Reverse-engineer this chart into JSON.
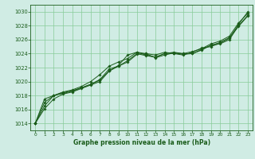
{
  "xlabel": "Graphe pression niveau de la mer (hPa)",
  "ylim": [
    1013.0,
    1031.0
  ],
  "xlim": [
    -0.5,
    23.5
  ],
  "yticks": [
    1014,
    1016,
    1018,
    1020,
    1022,
    1024,
    1026,
    1028,
    1030
  ],
  "xticks": [
    0,
    1,
    2,
    3,
    4,
    5,
    6,
    7,
    8,
    9,
    10,
    11,
    12,
    13,
    14,
    15,
    16,
    17,
    18,
    19,
    20,
    21,
    22,
    23
  ],
  "bg_color": "#d0ece4",
  "grid_color": "#88cc99",
  "line_color": "#1a5c1a",
  "series": [
    [
      1014.0,
      1016.1,
      1017.5,
      1018.2,
      1018.5,
      1019.0,
      1019.5,
      1020.0,
      1021.5,
      1022.3,
      1023.8,
      1024.2,
      1024.0,
      1023.8,
      1024.2,
      1024.0,
      1023.8,
      1024.2,
      1024.8,
      1025.0,
      1025.5,
      1026.2,
      1028.2,
      1030.0
    ],
    [
      1014.0,
      1017.5,
      1018.0,
      1018.5,
      1018.8,
      1019.3,
      1020.0,
      1021.0,
      1022.2,
      1022.8,
      1023.3,
      1024.2,
      1023.8,
      1023.5,
      1024.0,
      1024.1,
      1024.0,
      1024.3,
      1024.7,
      1025.4,
      1025.8,
      1026.5,
      1028.4,
      1029.8
    ],
    [
      1014.0,
      1017.0,
      1018.0,
      1018.3,
      1018.6,
      1019.1,
      1019.6,
      1020.2,
      1021.5,
      1022.2,
      1022.8,
      1023.9,
      1024.0,
      1023.4,
      1023.8,
      1024.1,
      1023.9,
      1024.0,
      1024.6,
      1025.2,
      1025.4,
      1026.0,
      1028.0,
      1029.5
    ],
    [
      1014.0,
      1016.5,
      1018.0,
      1018.4,
      1018.7,
      1019.1,
      1019.6,
      1020.3,
      1021.8,
      1022.2,
      1023.0,
      1024.0,
      1023.7,
      1023.5,
      1024.0,
      1024.2,
      1024.0,
      1024.0,
      1024.5,
      1025.2,
      1025.6,
      1026.3,
      1027.9,
      1029.4
    ]
  ]
}
